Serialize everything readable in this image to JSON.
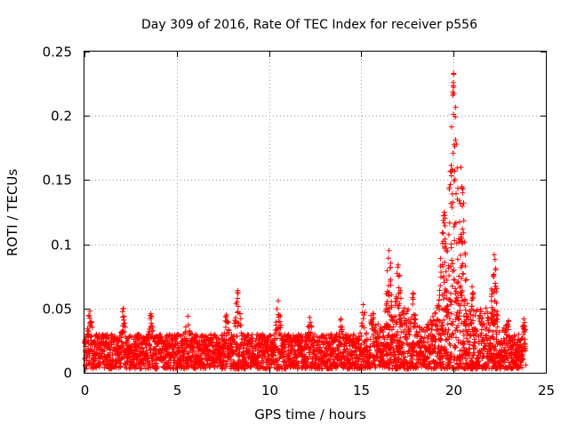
{
  "chart_data": {
    "type": "scatter",
    "title": "Day 309 of 2016, Rate Of TEC Index for receiver p556",
    "xlabel": "GPS time / hours",
    "ylabel": "ROTI / TECUs",
    "xlim": [
      0,
      25
    ],
    "ylim": [
      0,
      0.25
    ],
    "x_ticks": [
      0,
      5,
      10,
      15,
      20,
      25
    ],
    "x_tick_labels": [
      "0",
      "5",
      "10",
      "15",
      "20",
      "25"
    ],
    "y_ticks": [
      0,
      0.05,
      0.1,
      0.15,
      0.2,
      0.25
    ],
    "y_tick_labels": [
      "0",
      "0.05",
      "0.1",
      "0.15",
      "0.2",
      "0.25"
    ],
    "grid": true,
    "marker": "plus",
    "color": "#ff0000",
    "series": [
      {
        "name": "ROTI",
        "x_range": [
          0.0,
          23.9
        ],
        "baseline_band": [
          0.003,
          0.03
        ],
        "peaks": [
          {
            "x": 0.3,
            "y": 0.048
          },
          {
            "x": 2.1,
            "y": 0.05
          },
          {
            "x": 3.6,
            "y": 0.046
          },
          {
            "x": 5.6,
            "y": 0.044
          },
          {
            "x": 7.7,
            "y": 0.045
          },
          {
            "x": 8.3,
            "y": 0.064
          },
          {
            "x": 10.5,
            "y": 0.056
          },
          {
            "x": 12.2,
            "y": 0.043
          },
          {
            "x": 13.9,
            "y": 0.042
          },
          {
            "x": 15.1,
            "y": 0.053
          },
          {
            "x": 16.5,
            "y": 0.095
          },
          {
            "x": 17.0,
            "y": 0.084
          },
          {
            "x": 17.8,
            "y": 0.062
          },
          {
            "x": 19.5,
            "y": 0.125
          },
          {
            "x": 20.0,
            "y": 0.233
          },
          {
            "x": 20.4,
            "y": 0.16
          },
          {
            "x": 21.0,
            "y": 0.067
          },
          {
            "x": 22.2,
            "y": 0.092
          },
          {
            "x": 23.8,
            "y": 0.042
          }
        ]
      }
    ]
  }
}
